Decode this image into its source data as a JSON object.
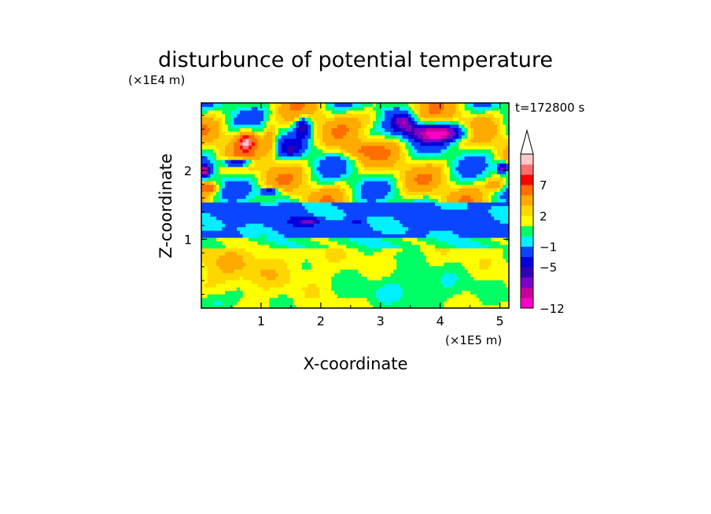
{
  "chart_data": {
    "type": "heatmap",
    "title": "disturbunce of potential temperature",
    "xlabel": "X-coordinate",
    "ylabel": "Z-coordinate",
    "x_unit": "(×1E5 m)",
    "y_unit": "(×1E4 m)",
    "time_label": "t=172800 s",
    "xlim": [
      0,
      5.15
    ],
    "ylim": [
      0,
      2.98
    ],
    "x_ticks": [
      "1",
      "2",
      "3",
      "4",
      "5"
    ],
    "x_tick_values": [
      1,
      2,
      3,
      4,
      5
    ],
    "y_ticks": [
      "1",
      "2"
    ],
    "y_tick_values": [
      1,
      2
    ],
    "colorbar": {
      "levels": [
        "-12",
        "-5",
        "-1",
        "2",
        "7"
      ],
      "colors_bottom_to_top": [
        "#ff00c8",
        "#c8009b",
        "#7d00c8",
        "#3200b4",
        "#0000dc",
        "#0a46ff",
        "#00f0ff",
        "#00ff64",
        "#ffff00",
        "#ffd700",
        "#ffaa00",
        "#ff6e00",
        "#ff0000",
        "#ff6e6e",
        "#ffc8c8"
      ],
      "extend_top": true
    },
    "field_description_regions": [
      {
        "z_range": [
          0.0,
          0.9
        ],
        "value_range": [
          0,
          3
        ]
      },
      {
        "z_range": [
          0.9,
          1.6
        ],
        "value_range": [
          -3,
          0
        ]
      },
      {
        "z_range": [
          1.6,
          2.98
        ],
        "value_range": [
          -6,
          9
        ]
      }
    ]
  }
}
